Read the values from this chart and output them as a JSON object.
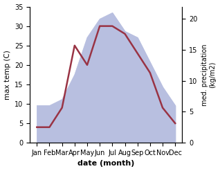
{
  "months": [
    "Jan",
    "Feb",
    "Mar",
    "Apr",
    "May",
    "Jun",
    "Jul",
    "Aug",
    "Sep",
    "Oct",
    "Nov",
    "Dec"
  ],
  "temperature": [
    4,
    4,
    9,
    25,
    20,
    30,
    30,
    28,
    23,
    18,
    9,
    5
  ],
  "precipitation": [
    6,
    6,
    7,
    11,
    17,
    20,
    21,
    18,
    17,
    13,
    9,
    6
  ],
  "temp_color": "#993344",
  "precip_fill_color": "#b8bfe0",
  "temp_ylim": [
    0,
    35
  ],
  "precip_ylim": [
    0,
    22
  ],
  "temp_yticks": [
    0,
    5,
    10,
    15,
    20,
    25,
    30,
    35
  ],
  "precip_yticks": [
    0,
    5,
    10,
    15,
    20
  ],
  "ylabel_left": "max temp (C)",
  "ylabel_right": "med. precipitation\n(kg/m2)",
  "xlabel": "date (month)",
  "bg_color": "#ffffff"
}
